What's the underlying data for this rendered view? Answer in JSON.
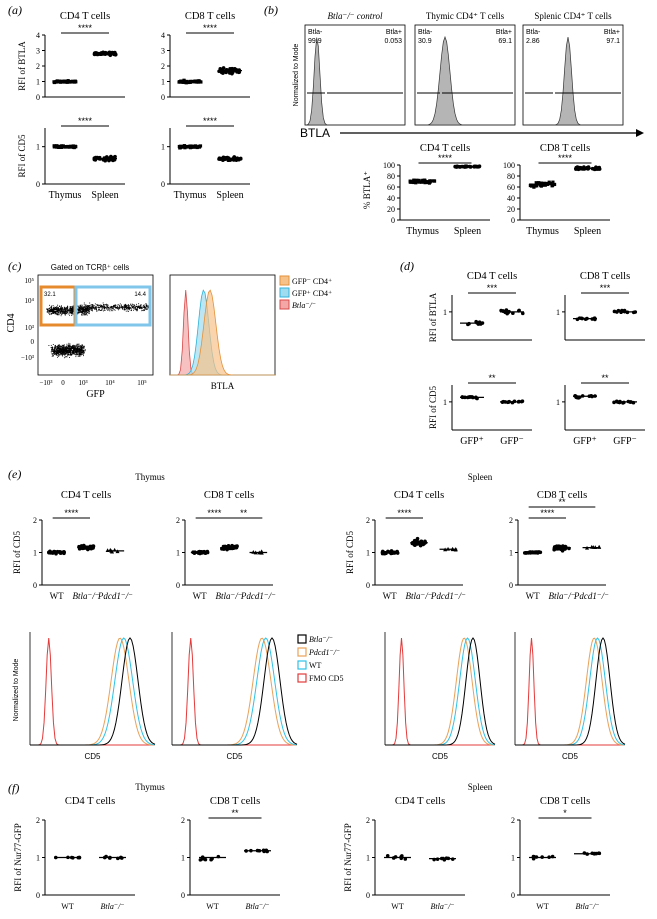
{
  "panels": {
    "a": {
      "letter": "(a)",
      "charts": [
        {
          "title": "CD4 T cells",
          "ylabel": "RFI of BTLA",
          "yticks": [
            "0",
            "1",
            "2",
            "3",
            "4"
          ],
          "ymax": 4,
          "groups": [
            {
              "center": 1.0,
              "spread": 0.08,
              "n": 40,
              "shape": "square"
            },
            {
              "center": 2.8,
              "spread": 0.15,
              "n": 40,
              "shape": "circle"
            }
          ],
          "sig": "****"
        },
        {
          "title": "CD8 T cells",
          "ylabel": "",
          "yticks": [
            "0",
            "1",
            "2",
            "3",
            "4"
          ],
          "ymax": 4,
          "groups": [
            {
              "center": 1.0,
              "spread": 0.1,
              "n": 40,
              "shape": "square"
            },
            {
              "center": 1.7,
              "spread": 0.25,
              "n": 40,
              "shape": "circle"
            }
          ],
          "sig": "****"
        },
        {
          "title": "",
          "ylabel": "RFI of CD5",
          "yticks": [
            "0",
            "1"
          ],
          "ymax": 1.5,
          "groups": [
            {
              "center": 1.0,
              "spread": 0.04,
              "n": 40,
              "shape": "square"
            },
            {
              "center": 0.68,
              "spread": 0.08,
              "n": 40,
              "shape": "circle"
            }
          ],
          "sig": "****"
        },
        {
          "title": "",
          "ylabel": "",
          "yticks": [
            "0",
            "1"
          ],
          "ymax": 1.5,
          "groups": [
            {
              "center": 1.0,
              "spread": 0.04,
              "n": 40,
              "shape": "square"
            },
            {
              "center": 0.68,
              "spread": 0.06,
              "n": 40,
              "shape": "circle"
            }
          ],
          "sig": "****"
        }
      ],
      "xcats": [
        "Thymus",
        "Spleen"
      ]
    },
    "b": {
      "letter": "(b)",
      "hist_titles": [
        "Btla⁻/⁻ control",
        "Thymic CD4⁺ T cells",
        "Splenic CD4⁺ T cells"
      ],
      "gates": [
        {
          "left_label": "Btla-",
          "left_val": "99.9",
          "right_label": "Btla+",
          "right_val": "0.053"
        },
        {
          "left_label": "Btla-",
          "left_val": "30.9",
          "right_label": "Btla+",
          "right_val": "69.1"
        },
        {
          "left_label": "Btla-",
          "left_val": "2.86",
          "right_label": "Btla+",
          "right_val": "97.1"
        }
      ],
      "ylabel": "Normalized to Mode",
      "xlabel": "BTLA",
      "charts": [
        {
          "title": "CD4 T cells",
          "groups": [
            {
              "center": 70,
              "spread": 4,
              "n": 40,
              "shape": "square"
            },
            {
              "center": 97,
              "spread": 1.5,
              "n": 40,
              "shape": "circle"
            }
          ],
          "sig": "****"
        },
        {
          "title": "CD8 T cells",
          "groups": [
            {
              "center": 65,
              "spread": 6,
              "n": 40,
              "shape": "square"
            },
            {
              "center": 94,
              "spread": 4,
              "n": 40,
              "shape": "circle"
            }
          ],
          "sig": "****"
        }
      ],
      "bar_ylabel": "% BTLA⁺",
      "yticks": [
        "0",
        "20",
        "40",
        "60",
        "80",
        "100"
      ],
      "xcats": [
        "Thymus",
        "Spleen"
      ]
    },
    "c": {
      "letter": "(c)",
      "gate_title": "Gated on TCRβ⁺ cells",
      "gate_left": "32.1",
      "gate_right": "14.4",
      "ylabel": "CD4",
      "xlabel": "GFP",
      "yticks": [
        "10⁵",
        "10⁴",
        "10³",
        "0",
        "−10³"
      ],
      "xticks": [
        "−10³",
        "0",
        "10³",
        "10⁴",
        "10⁵"
      ],
      "hist_xlabel": "BTLA",
      "legend": [
        {
          "label": "GFP⁻ CD4⁺",
          "color": "#f6c28a",
          "stroke": "#e3913a"
        },
        {
          "label": "GFP⁺ CD4⁺",
          "color": "#9fdcf0",
          "stroke": "#2fb2d9"
        },
        {
          "label": "Btla⁻/⁻",
          "color": "#f3a7a7",
          "stroke": "#d84848"
        }
      ]
    },
    "d": {
      "letter": "(d)",
      "charts": [
        {
          "title": "CD4 T cells",
          "ylabel": "RFI of BTLA",
          "ytick": "1",
          "groups": [
            {
              "center": 0.8,
              "spread": 0.05,
              "n": 10
            },
            {
              "center": 1.0,
              "spread": 0.06,
              "n": 12
            }
          ],
          "sig": "***"
        },
        {
          "title": "CD8 T cells",
          "ylabel": "",
          "ytick": "1",
          "groups": [
            {
              "center": 0.88,
              "spread": 0.03,
              "n": 10
            },
            {
              "center": 1.0,
              "spread": 0.04,
              "n": 12
            }
          ],
          "sig": "***"
        },
        {
          "title": "",
          "ylabel": "RFI of CD5",
          "ytick": "1",
          "groups": [
            {
              "center": 1.08,
              "spread": 0.03,
              "n": 12
            },
            {
              "center": 1.0,
              "spread": 0.03,
              "n": 12
            }
          ],
          "sig": "**"
        },
        {
          "title": "",
          "ylabel": "",
          "ytick": "1",
          "groups": [
            {
              "center": 1.1,
              "spread": 0.06,
              "n": 12
            },
            {
              "center": 1.0,
              "spread": 0.03,
              "n": 12
            }
          ],
          "sig": "**"
        }
      ],
      "xcats": [
        "GFP⁺",
        "GFP⁻"
      ]
    },
    "e": {
      "letter": "(e)",
      "section_thymus": "Thymus",
      "section_spleen": "Spleen",
      "charts": [
        {
          "title": "CD4 T cells",
          "ylabel": "RFI of CD5",
          "groups": [
            {
              "center": 1.0,
              "spread": 0.05,
              "n": 30
            },
            {
              "center": 1.15,
              "spread": 0.1,
              "n": 30
            },
            {
              "center": 1.05,
              "spread": 0.05,
              "n": 6
            }
          ],
          "sigs": [
            {
              "text": "****",
              "from": 0,
              "to": 1,
              "level": 0
            }
          ]
        },
        {
          "title": "CD8 T cells",
          "ylabel": "",
          "groups": [
            {
              "center": 1.0,
              "spread": 0.04,
              "n": 30
            },
            {
              "center": 1.15,
              "spread": 0.1,
              "n": 30
            },
            {
              "center": 1.0,
              "spread": 0.05,
              "n": 6
            }
          ],
          "sigs": [
            {
              "text": "****",
              "from": 0,
              "to": 1,
              "level": 0
            },
            {
              "text": "**",
              "from": 1,
              "to": 2,
              "level": 0
            }
          ]
        },
        {
          "title": "CD4 T cells",
          "ylabel": "RFI of CD5",
          "groups": [
            {
              "center": 1.0,
              "spread": 0.06,
              "n": 30
            },
            {
              "center": 1.3,
              "spread": 0.15,
              "n": 30
            },
            {
              "center": 1.1,
              "spread": 0.05,
              "n": 6
            }
          ],
          "sigs": [
            {
              "text": "****",
              "from": 0,
              "to": 1,
              "level": 0
            }
          ]
        },
        {
          "title": "CD8 T cells",
          "ylabel": "",
          "groups": [
            {
              "center": 1.0,
              "spread": 0.03,
              "n": 30
            },
            {
              "center": 1.15,
              "spread": 0.12,
              "n": 30
            },
            {
              "center": 1.15,
              "spread": 0.05,
              "n": 6
            }
          ],
          "sigs": [
            {
              "text": "****",
              "from": 0,
              "to": 1,
              "level": 0
            },
            {
              "text": "**",
              "from": 0,
              "to": 2,
              "level": 1
            }
          ]
        }
      ],
      "xcats": [
        "WT",
        "Btla⁻/⁻",
        "Pdcd1⁻/⁻"
      ],
      "yticks": [
        "0",
        "1",
        "2"
      ],
      "hist_ylabel": "Normalized to Mode",
      "hist_xlabel": "CD5",
      "legend": [
        {
          "label": "Btla⁻/⁻",
          "color": "#000000"
        },
        {
          "label": "Pdcd1⁻/⁻",
          "color": "#e8a25a"
        },
        {
          "label": "WT",
          "color": "#2fc2e6"
        },
        {
          "label": "FMO CD5",
          "color": "#e33b3b"
        }
      ]
    },
    "f": {
      "letter": "(f)",
      "section_thymus": "Thymus",
      "section_spleen": "Spleen",
      "ylabel": "RFI of Nur77-GFP",
      "charts": [
        {
          "title": "CD4 T cells",
          "groups": [
            {
              "center": 1.0,
              "spread": 0.02,
              "n": 7
            },
            {
              "center": 1.0,
              "spread": 0.04,
              "n": 8
            }
          ],
          "sig": ""
        },
        {
          "title": "CD8 T cells",
          "groups": [
            {
              "center": 1.0,
              "spread": 0.1,
              "n": 7
            },
            {
              "center": 1.18,
              "spread": 0.05,
              "n": 8
            }
          ],
          "sig": "**"
        },
        {
          "title": "CD4 T cells",
          "groups": [
            {
              "center": 1.0,
              "spread": 0.08,
              "n": 7
            },
            {
              "center": 0.97,
              "spread": 0.08,
              "n": 8
            }
          ],
          "sig": ""
        },
        {
          "title": "CD8 T cells",
          "groups": [
            {
              "center": 1.0,
              "spread": 0.05,
              "n": 7
            },
            {
              "center": 1.1,
              "spread": 0.04,
              "n": 8
            }
          ],
          "sig": "*"
        }
      ],
      "xcats": [
        "WT",
        "Btla⁻/⁻"
      ],
      "yticks": [
        "0",
        "1",
        "2"
      ]
    }
  }
}
